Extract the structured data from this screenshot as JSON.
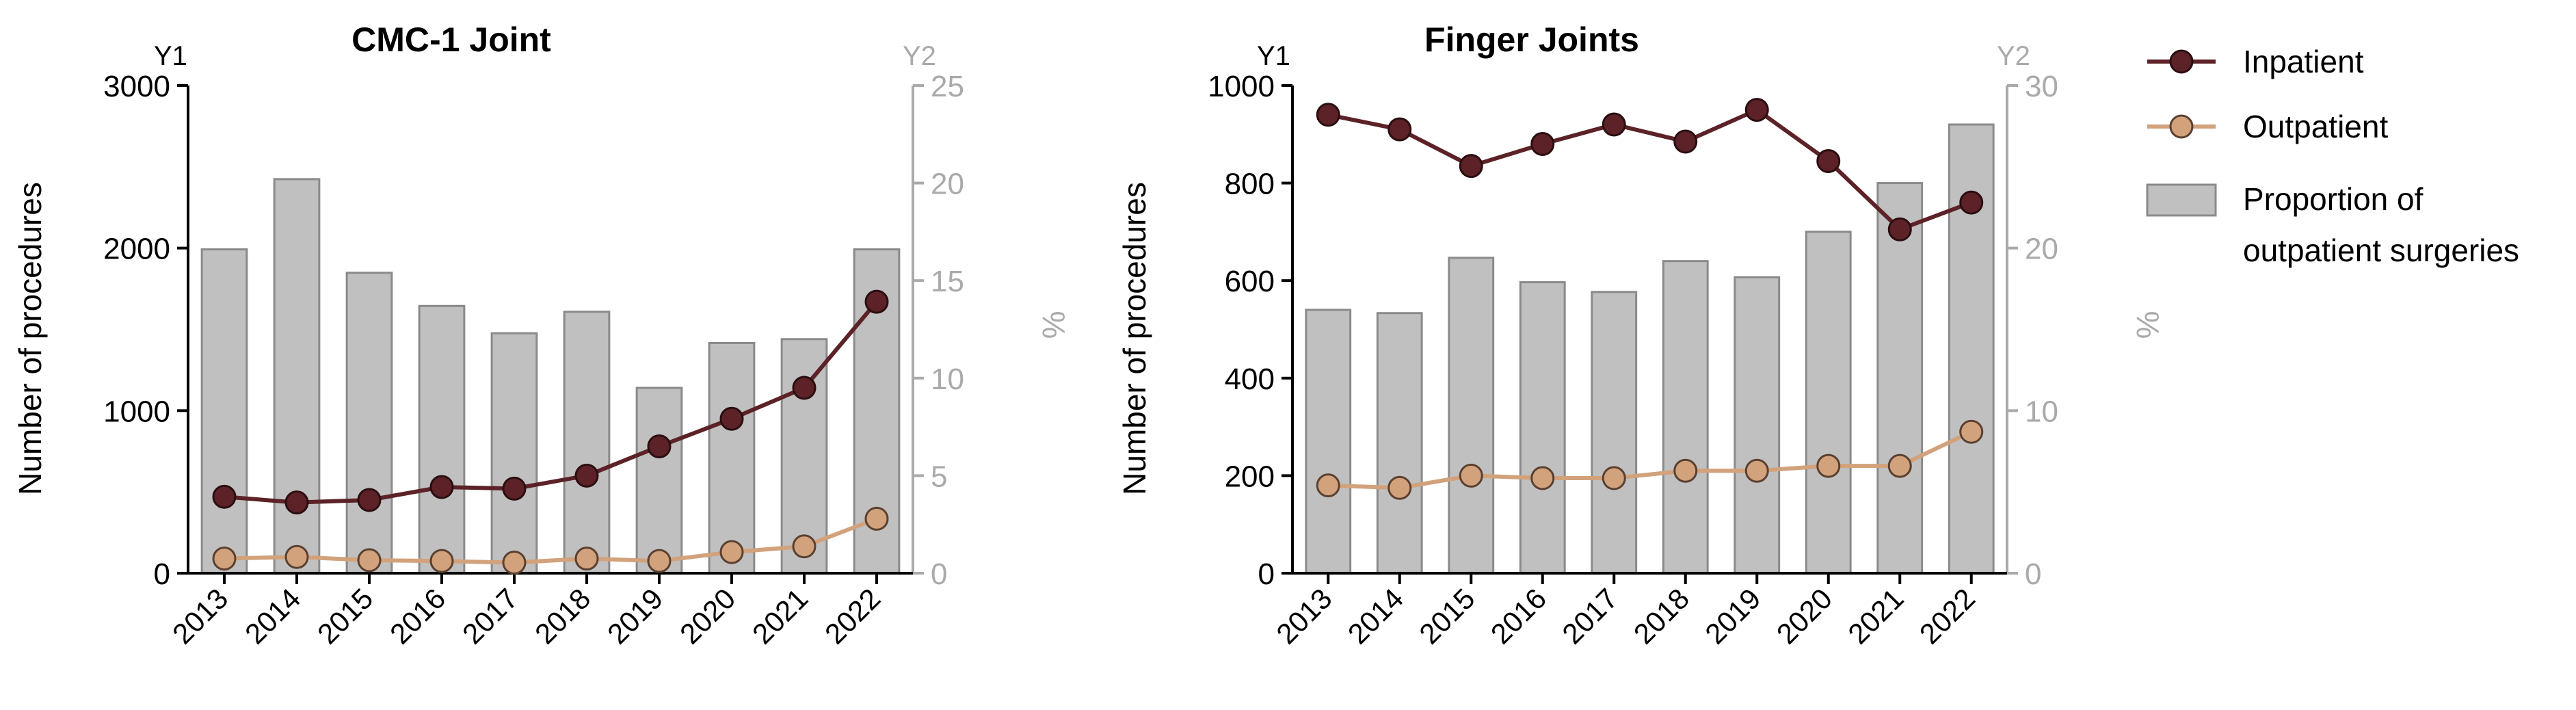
{
  "legend": {
    "inpatient": "Inpatient",
    "outpatient": "Outpatient",
    "proportion_line1": "Proportion of",
    "proportion_line2": "outpatient surgeries"
  },
  "colors": {
    "inpatient": "#5c2228",
    "outpatient": "#d2a27c",
    "bar_fill": "#c0c0c0",
    "bar_stroke": "#8a8a8a",
    "axis": "#000000",
    "y2_axis": "#aaaaaa"
  },
  "chart_data": [
    {
      "type": "bar+line",
      "title": "CMC-1 Joint",
      "y1_label": "Y1",
      "y2_label": "Y2",
      "ylabel": "Number of procedures",
      "y2label": "%",
      "categories": [
        "2013",
        "2014",
        "2015",
        "2016",
        "2017",
        "2018",
        "2019",
        "2020",
        "2021",
        "2022"
      ],
      "ylim": [
        0,
        3000
      ],
      "yticks": [
        "0",
        "1000",
        "2000",
        "3000"
      ],
      "y2lim": [
        0,
        25
      ],
      "y2ticks": [
        "0",
        "5",
        "10",
        "15",
        "20",
        "25"
      ],
      "bars": {
        "name": "Proportion of outpatient surgeries",
        "axis": "y2",
        "values": [
          16.6,
          20.2,
          15.4,
          13.7,
          12.3,
          13.4,
          9.5,
          11.8,
          12.0,
          16.6
        ]
      },
      "series": [
        {
          "name": "Inpatient",
          "axis": "y1",
          "values": [
            470,
            435,
            450,
            530,
            520,
            600,
            780,
            950,
            1140,
            1670
          ]
        },
        {
          "name": "Outpatient",
          "axis": "y1",
          "values": [
            90,
            100,
            80,
            75,
            65,
            90,
            75,
            130,
            165,
            335
          ]
        }
      ],
      "grid": false
    },
    {
      "type": "bar+line",
      "title": "Finger Joints",
      "y1_label": "Y1",
      "y2_label": "Y2",
      "ylabel": "Number of procedures",
      "y2label": "%",
      "categories": [
        "2013",
        "2014",
        "2015",
        "2016",
        "2017",
        "2018",
        "2019",
        "2020",
        "2021",
        "2022"
      ],
      "ylim": [
        0,
        1000
      ],
      "yticks": [
        "0",
        "200",
        "400",
        "600",
        "800",
        "1000"
      ],
      "y2lim": [
        0,
        30
      ],
      "y2ticks": [
        "0",
        "10",
        "20",
        "30"
      ],
      "bars": {
        "name": "Proportion of outpatient surgeries",
        "axis": "y2",
        "values": [
          16.2,
          16.0,
          19.4,
          17.9,
          17.3,
          19.2,
          18.2,
          21.0,
          24.0,
          27.6
        ]
      },
      "series": [
        {
          "name": "Inpatient",
          "axis": "y1",
          "values": [
            940,
            910,
            835,
            880,
            920,
            885,
            950,
            845,
            705,
            760
          ]
        },
        {
          "name": "Outpatient",
          "axis": "y1",
          "values": [
            180,
            175,
            200,
            195,
            195,
            210,
            210,
            220,
            220,
            290
          ]
        }
      ],
      "grid": false
    }
  ]
}
